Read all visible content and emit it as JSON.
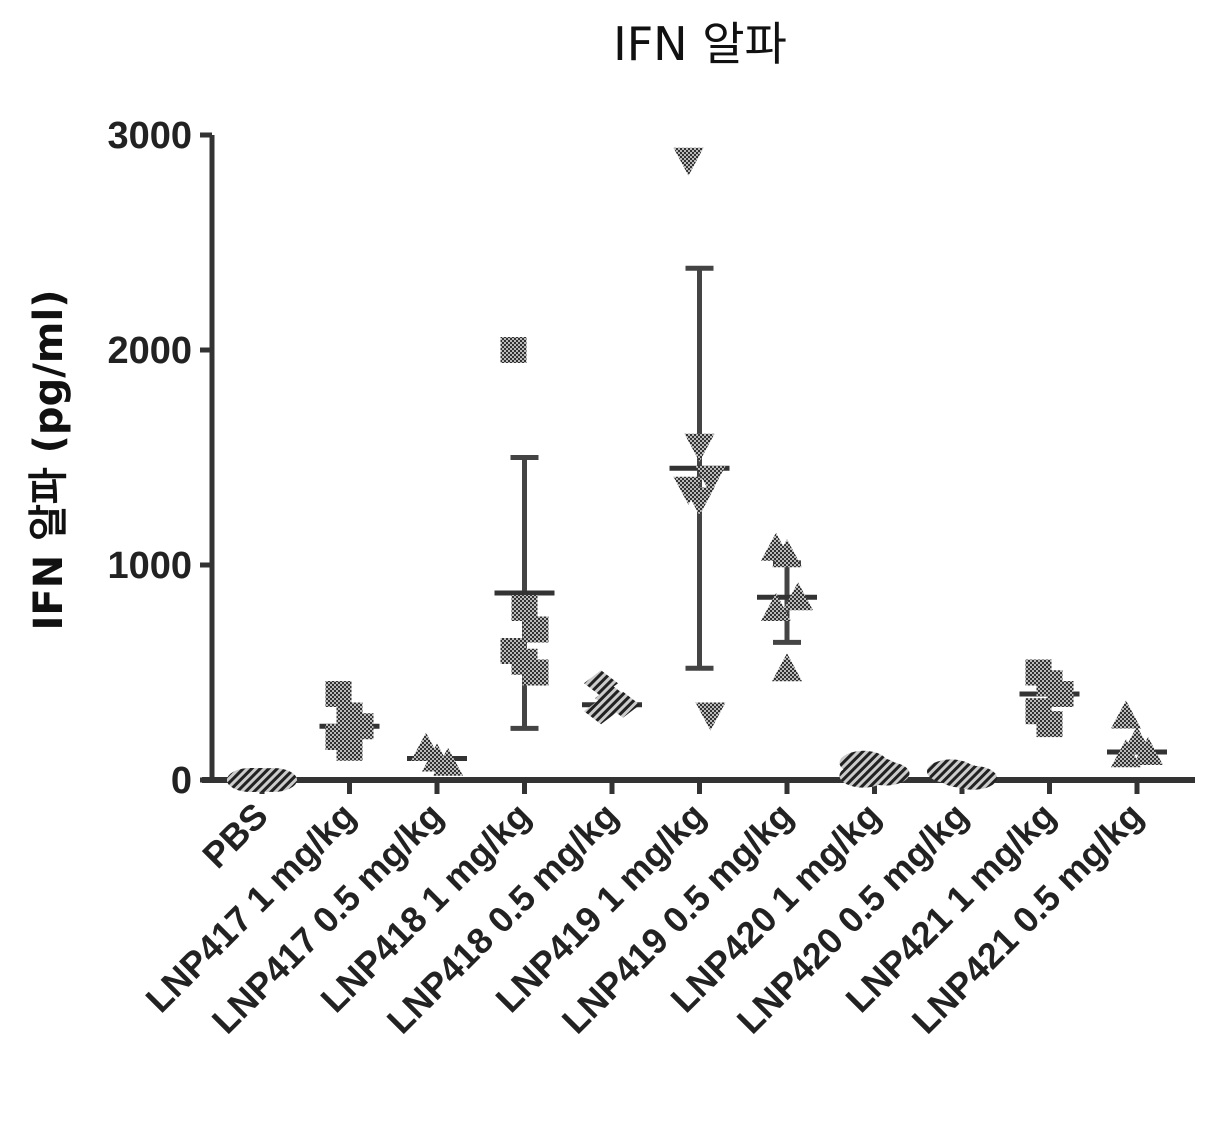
{
  "chart_data": {
    "type": "scatter",
    "title": "IFN 알파",
    "xlabel": "",
    "ylabel": "IFN 알파 (pg/ml)",
    "ylim": [
      0,
      3000
    ],
    "yticks": [
      0,
      1000,
      2000,
      3000
    ],
    "grid": false,
    "categories": [
      "PBS",
      "LNP417 1 mg/kg",
      "LNP417 0.5 mg/kg",
      "LNP418 1 mg/kg",
      "LNP418 0.5 mg/kg",
      "LNP419 1 mg/kg",
      "LNP419 0.5 mg/kg",
      "LNP420 1 mg/kg",
      "LNP420 0.5 mg/kg",
      "LNP421 1 mg/kg",
      "LNP421 0.5 mg/kg"
    ],
    "groups": [
      {
        "marker": "hatched-blob",
        "mean": 0,
        "sd_low": null,
        "sd_high": null,
        "points": [
          0,
          0,
          0,
          0,
          0
        ]
      },
      {
        "marker": "square",
        "mean": 250,
        "sd_low": null,
        "sd_high": null,
        "points": [
          400,
          300,
          250,
          200,
          150
        ]
      },
      {
        "marker": "triangle",
        "mean": 100,
        "sd_low": null,
        "sd_high": null,
        "points": [
          150,
          100,
          80
        ]
      },
      {
        "marker": "square",
        "mean": 870,
        "sd_low": 240,
        "sd_high": 1500,
        "points": [
          2000,
          800,
          700,
          600,
          550,
          500
        ]
      },
      {
        "marker": "diamond",
        "mean": 350,
        "sd_low": null,
        "sd_high": null,
        "points": [
          450,
          380,
          350,
          320
        ]
      },
      {
        "marker": "triangle-down",
        "mean": 1450,
        "sd_low": 520,
        "sd_high": 2380,
        "points": [
          2880,
          1550,
          1400,
          1350,
          1300,
          300
        ]
      },
      {
        "marker": "triangle",
        "mean": 850,
        "sd_low": 640,
        "sd_high": 1010,
        "points": [
          1080,
          1050,
          850,
          800,
          520
        ]
      },
      {
        "marker": "hatched-blob",
        "mean": 30,
        "sd_low": null,
        "sd_high": null,
        "points": [
          80,
          50,
          30,
          20
        ]
      },
      {
        "marker": "hatched-blob",
        "mean": 20,
        "sd_low": null,
        "sd_high": null,
        "points": [
          40,
          20,
          10
        ]
      },
      {
        "marker": "square",
        "mean": 400,
        "sd_low": null,
        "sd_high": null,
        "points": [
          500,
          450,
          400,
          320,
          260
        ]
      },
      {
        "marker": "triangle",
        "mean": 130,
        "sd_low": null,
        "sd_high": null,
        "points": [
          300,
          180,
          130,
          120
        ]
      }
    ]
  }
}
